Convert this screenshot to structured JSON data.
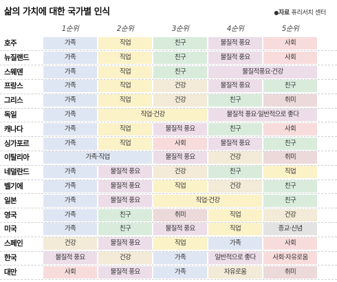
{
  "title": "삶의 가치에 대한 국가별 인식",
  "source": {
    "bullet": "●",
    "label": "자료",
    "name": "퓨리서치 센터"
  },
  "ranks": [
    "1순위",
    "2순위",
    "3순위",
    "4순위",
    "5순위"
  ],
  "colors": {
    "가족": "#dfe6f3",
    "직업": "#fbf2c8",
    "친구": "#d9ecdc",
    "물질적 풍요": "#ecdde9",
    "사회": "#f8dcdc",
    "건강": "#f3ead7",
    "취미": "#ecd9d9",
    "종교": "#e3e3e3"
  },
  "rows": [
    {
      "country": "호주",
      "cells": [
        {
          "text": "가족",
          "span": 1,
          "color": "가족"
        },
        {
          "text": "직업",
          "span": 1,
          "color": "직업"
        },
        {
          "text": "친구",
          "span": 1,
          "color": "친구"
        },
        {
          "text": "물질적 풍요",
          "span": 1,
          "color": "물질적 풍요"
        },
        {
          "text": "사회",
          "span": 1,
          "color": "사회"
        }
      ]
    },
    {
      "country": "뉴질랜드",
      "cells": [
        {
          "text": "가족",
          "span": 1,
          "color": "가족"
        },
        {
          "text": "직업",
          "span": 1,
          "color": "직업"
        },
        {
          "text": "친구",
          "span": 1,
          "color": "친구"
        },
        {
          "text": "물질적 풍요",
          "span": 1,
          "color": "물질적 풍요"
        },
        {
          "text": "사회",
          "span": 1,
          "color": "사회"
        }
      ]
    },
    {
      "country": "스웨덴",
      "cells": [
        {
          "text": "가족",
          "span": 1,
          "color": "가족"
        },
        {
          "text": "직업",
          "span": 1,
          "color": "직업"
        },
        {
          "text": "친구",
          "span": 1,
          "color": "친구"
        },
        {
          "text": "물질적풍요·건강",
          "span": 2,
          "color": "물질적 풍요"
        }
      ]
    },
    {
      "country": "프랑스",
      "cells": [
        {
          "text": "가족",
          "span": 1,
          "color": "가족"
        },
        {
          "text": "직업",
          "span": 1,
          "color": "직업"
        },
        {
          "text": "건강",
          "span": 1,
          "color": "건강"
        },
        {
          "text": "물질적 풍요",
          "span": 1,
          "color": "물질적 풍요"
        },
        {
          "text": "친구",
          "span": 1,
          "color": "친구"
        }
      ]
    },
    {
      "country": "그리스",
      "cells": [
        {
          "text": "가족",
          "span": 1,
          "color": "가족"
        },
        {
          "text": "직업",
          "span": 1,
          "color": "직업"
        },
        {
          "text": "건강",
          "span": 1,
          "color": "건강"
        },
        {
          "text": "친구",
          "span": 1,
          "color": "친구"
        },
        {
          "text": "취미",
          "span": 1,
          "color": "취미"
        }
      ]
    },
    {
      "country": "독일",
      "cells": [
        {
          "text": "가족",
          "span": 1,
          "color": "가족"
        },
        {
          "text": "직업·건강",
          "span": 2,
          "color": "직업"
        },
        {
          "text": "물질적 풍요·일반적으로 좋다",
          "span": 2,
          "color": "물질적 풍요"
        }
      ]
    },
    {
      "country": "캐나다",
      "cells": [
        {
          "text": "가족",
          "span": 1,
          "color": "가족"
        },
        {
          "text": "직업",
          "span": 1,
          "color": "직업"
        },
        {
          "text": "물질적 풍요",
          "span": 1,
          "color": "물질적 풍요"
        },
        {
          "text": "친구",
          "span": 1,
          "color": "친구"
        },
        {
          "text": "사회",
          "span": 1,
          "color": "사회"
        }
      ]
    },
    {
      "country": "싱가포르",
      "cells": [
        {
          "text": "가족",
          "span": 1,
          "color": "가족"
        },
        {
          "text": "직업",
          "span": 1,
          "color": "직업"
        },
        {
          "text": "사회",
          "span": 1,
          "color": "사회"
        },
        {
          "text": "물질적 풍요",
          "span": 1,
          "color": "물질적 풍요"
        },
        {
          "text": "친구",
          "span": 1,
          "color": "친구"
        }
      ]
    },
    {
      "country": "이탈리아",
      "cells": [
        {
          "text": "가족·직업",
          "span": 2,
          "color": "가족"
        },
        {
          "text": "물질적 풍요",
          "span": 1,
          "color": "물질적 풍요"
        },
        {
          "text": "건강",
          "span": 1,
          "color": "건강"
        },
        {
          "text": "취미",
          "span": 1,
          "color": "취미"
        }
      ]
    },
    {
      "country": "네덜란드",
      "cells": [
        {
          "text": "가족",
          "span": 1,
          "color": "가족"
        },
        {
          "text": "물질적 풍요",
          "span": 1,
          "color": "물질적 풍요"
        },
        {
          "text": "건강",
          "span": 1,
          "color": "건강"
        },
        {
          "text": "친구",
          "span": 1,
          "color": "친구"
        },
        {
          "text": "직업",
          "span": 1,
          "color": "직업"
        }
      ]
    },
    {
      "country": "벨기에",
      "cells": [
        {
          "text": "가족",
          "span": 1,
          "color": "가족"
        },
        {
          "text": "물질적 풍요",
          "span": 1,
          "color": "물질적 풍요"
        },
        {
          "text": "직업",
          "span": 1,
          "color": "직업"
        },
        {
          "text": "건강",
          "span": 1,
          "color": "건강"
        },
        {
          "text": "친구",
          "span": 1,
          "color": "친구"
        }
      ]
    },
    {
      "country": "일본",
      "cells": [
        {
          "text": "가족",
          "span": 1,
          "color": "가족"
        },
        {
          "text": "물질적 풍요",
          "span": 1,
          "color": "물질적 풍요"
        },
        {
          "text": "직업·건강",
          "span": 2,
          "color": "직업"
        },
        {
          "text": "친구",
          "span": 1,
          "color": "친구"
        }
      ]
    },
    {
      "country": "영국",
      "cells": [
        {
          "text": "가족",
          "span": 1,
          "color": "가족"
        },
        {
          "text": "친구",
          "span": 1,
          "color": "친구"
        },
        {
          "text": "취미",
          "span": 1,
          "color": "취미"
        },
        {
          "text": "직업",
          "span": 1,
          "color": "직업"
        },
        {
          "text": "건강",
          "span": 1,
          "color": "건강"
        }
      ]
    },
    {
      "country": "미국",
      "cells": [
        {
          "text": "가족",
          "span": 1,
          "color": "가족"
        },
        {
          "text": "친구",
          "span": 1,
          "color": "친구"
        },
        {
          "text": "물질적 풍요",
          "span": 1,
          "color": "물질적 풍요"
        },
        {
          "text": "직업",
          "span": 1,
          "color": "직업"
        },
        {
          "text": "종교·신념",
          "span": 1,
          "color": "종교"
        }
      ]
    },
    {
      "country": "스페인",
      "cells": [
        {
          "text": "건강",
          "span": 1,
          "color": "건강"
        },
        {
          "text": "물질적 풍요",
          "span": 1,
          "color": "물질적 풍요"
        },
        {
          "text": "직업",
          "span": 1,
          "color": "직업"
        },
        {
          "text": "가족",
          "span": 1,
          "color": "가족"
        },
        {
          "text": "사회",
          "span": 1,
          "color": "사회"
        }
      ]
    },
    {
      "country": "한국",
      "cells": [
        {
          "text": "물질적 풍요",
          "span": 1,
          "color": "물질적 풍요"
        },
        {
          "text": "건강",
          "span": 1,
          "color": "건강"
        },
        {
          "text": "가족",
          "span": 1,
          "color": "가족"
        },
        {
          "text": "일반적으로 좋다",
          "span": 1,
          "color": "물질적 풍요"
        },
        {
          "text": "사회·자유로움",
          "span": 1,
          "color": "사회"
        }
      ]
    },
    {
      "country": "대만",
      "cells": [
        {
          "text": "사회",
          "span": 1,
          "color": "사회"
        },
        {
          "text": "물질적 풍요",
          "span": 1,
          "color": "물질적 풍요"
        },
        {
          "text": "가족",
          "span": 1,
          "color": "가족"
        },
        {
          "text": "자유로움",
          "span": 1,
          "color": "건강"
        },
        {
          "text": "취미",
          "span": 1,
          "color": "취미"
        }
      ]
    }
  ]
}
